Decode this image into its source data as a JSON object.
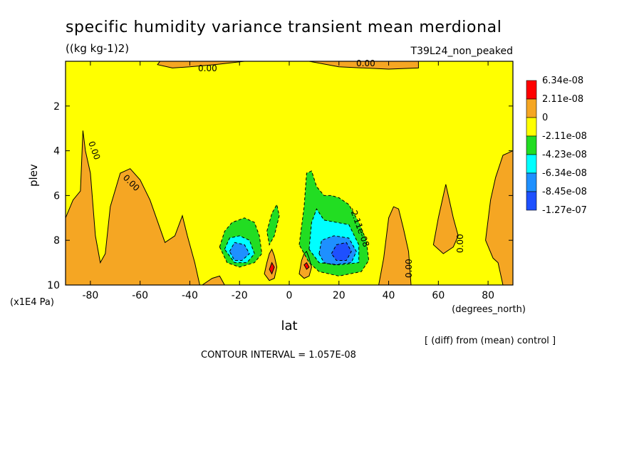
{
  "chart_data": {
    "type": "heatmap",
    "title": "specific humidity variance transient mean merdional",
    "units": "((kg kg-1)2)",
    "run_label": "T39L24_non_peaked",
    "xlabel": "lat",
    "xunits": "(degrees_north)",
    "ylabel": "plev",
    "yunits": "(x1E4 Pa)",
    "xlim": [
      -90,
      90
    ],
    "ylim": [
      10,
      0
    ],
    "xticks": [
      -80,
      -60,
      -40,
      -20,
      0,
      20,
      40,
      60,
      80
    ],
    "yticks": [
      2,
      4,
      6,
      8,
      10
    ],
    "footer_note": "[ (diff) from (mean) control ]",
    "contour_interval": "CONTOUR INTERVAL = 1.057E-08",
    "contour_labels": [
      "0.00",
      "0.00",
      "0.00",
      "0.00",
      "0.00",
      "0.00",
      "-2.11e-08"
    ],
    "legend": [
      {
        "label": "6.34e-08",
        "color": "#ff0000"
      },
      {
        "label": "2.11e-08",
        "color": "#f5a623"
      },
      {
        "label": "0",
        "color": "#ffff00"
      },
      {
        "label": "-2.11e-08",
        "color": "#22dd22"
      },
      {
        "label": "-4.23e-08",
        "color": "#00ffff"
      },
      {
        "label": "-6.34e-08",
        "color": "#1e90ff"
      },
      {
        "label": "-8.45e-08",
        "color": "#1e50ff"
      },
      {
        "label": "-1.27e-07",
        "color": ""
      }
    ],
    "legend_bounds": [
      "6.34e-08",
      "2.11e-08",
      "0",
      "-2.11e-08",
      "-4.23e-08",
      "-6.34e-08",
      "-8.45e-08",
      "-1.27e-07"
    ],
    "regions": [
      {
        "level": "positive",
        "color": "#f5a623",
        "points": [
          [
            -90,
            7
          ],
          [
            -87,
            6.2
          ],
          [
            -84,
            5.8
          ],
          [
            -83,
            3.1
          ],
          [
            -82,
            4.0
          ],
          [
            -80,
            5.0
          ],
          [
            -78,
            7.8
          ],
          [
            -76,
            9.0
          ],
          [
            -74,
            8.6
          ],
          [
            -72,
            6.5
          ],
          [
            -68,
            5.0
          ],
          [
            -64,
            4.8
          ],
          [
            -60,
            5.3
          ],
          [
            -56,
            6.2
          ],
          [
            -50,
            8.1
          ],
          [
            -46,
            7.8
          ],
          [
            -43,
            6.9
          ],
          [
            -41,
            7.8
          ],
          [
            -38,
            9.0
          ],
          [
            -36,
            10
          ],
          [
            -90,
            10
          ]
        ]
      },
      {
        "level": "positive",
        "color": "#f5a623",
        "points": [
          [
            -35,
            10
          ],
          [
            -31,
            9.7
          ],
          [
            -28,
            9.6
          ],
          [
            -26,
            10
          ]
        ]
      },
      {
        "level": "positive",
        "color": "#f5a623",
        "points": [
          [
            -10,
            9.5
          ],
          [
            -9,
            9.0
          ],
          [
            -8,
            8.6
          ],
          [
            -7,
            8.4
          ],
          [
            -6,
            8.7
          ],
          [
            -5,
            9.2
          ],
          [
            -6,
            9.7
          ],
          [
            -8,
            9.8
          ]
        ]
      },
      {
        "level": "positive",
        "color": "#f5a623",
        "points": [
          [
            4,
            9.5
          ],
          [
            5,
            8.9
          ],
          [
            6,
            8.6
          ],
          [
            7,
            8.5
          ],
          [
            8,
            8.8
          ],
          [
            9,
            9.2
          ],
          [
            8,
            9.6
          ],
          [
            6,
            9.7
          ]
        ]
      },
      {
        "level": "positive",
        "color": "#f5a623",
        "points": [
          [
            36,
            10
          ],
          [
            38,
            8.8
          ],
          [
            40,
            7.0
          ],
          [
            42,
            6.5
          ],
          [
            44,
            6.6
          ],
          [
            46,
            7.5
          ],
          [
            48,
            8.5
          ],
          [
            49,
            10
          ]
        ]
      },
      {
        "level": "positive",
        "color": "#f5a623",
        "points": [
          [
            58,
            8.2
          ],
          [
            60,
            7.0
          ],
          [
            62,
            6.0
          ],
          [
            63,
            5.5
          ],
          [
            64,
            6.0
          ],
          [
            66,
            7.0
          ],
          [
            68,
            7.8
          ],
          [
            66,
            8.3
          ],
          [
            62,
            8.6
          ]
        ]
      },
      {
        "level": "positive",
        "color": "#f5a623",
        "points": [
          [
            79,
            8.0
          ],
          [
            81,
            6.2
          ],
          [
            83,
            5.2
          ],
          [
            86,
            4.2
          ],
          [
            90,
            4.0
          ],
          [
            90,
            10
          ],
          [
            86,
            10
          ],
          [
            84,
            9.0
          ],
          [
            82,
            8.8
          ]
        ]
      },
      {
        "level": "positive",
        "color": "#f5a623",
        "points": [
          [
            -52,
            0
          ],
          [
            -53,
            0.15
          ],
          [
            -47,
            0.3
          ],
          [
            -40,
            0.25
          ],
          [
            -30,
            0.15
          ],
          [
            -18,
            0
          ],
          [
            8,
            0
          ],
          [
            20,
            0.25
          ],
          [
            40,
            0.35
          ],
          [
            52,
            0.3
          ],
          [
            52,
            0
          ]
        ]
      },
      {
        "level": "-2.11e-08",
        "color": "#22dd22",
        "points": [
          [
            -28,
            8.3
          ],
          [
            -26,
            7.6
          ],
          [
            -23,
            7.2
          ],
          [
            -18,
            7.0
          ],
          [
            -14,
            7.2
          ],
          [
            -12,
            7.8
          ],
          [
            -11,
            8.6
          ],
          [
            -14,
            9.0
          ],
          [
            -20,
            9.2
          ],
          [
            -25,
            9.0
          ]
        ]
      },
      {
        "level": "-2.11e-08",
        "color": "#22dd22",
        "points": [
          [
            -9,
            7.6
          ],
          [
            -7,
            6.8
          ],
          [
            -5,
            6.4
          ],
          [
            -4,
            6.9
          ],
          [
            -6,
            7.8
          ],
          [
            -8,
            8.2
          ]
        ]
      },
      {
        "level": "-2.11e-08",
        "color": "#22dd22",
        "points": [
          [
            4,
            8.2
          ],
          [
            6,
            6.5
          ],
          [
            7,
            5.0
          ],
          [
            9,
            4.9
          ],
          [
            11,
            5.6
          ],
          [
            14,
            6.0
          ],
          [
            17,
            6.0
          ],
          [
            20,
            6.1
          ],
          [
            24,
            6.4
          ],
          [
            28,
            7.2
          ],
          [
            31,
            8.0
          ],
          [
            32,
            8.9
          ],
          [
            29,
            9.4
          ],
          [
            20,
            9.6
          ],
          [
            12,
            9.4
          ],
          [
            8,
            9.0
          ]
        ]
      },
      {
        "level": "-4.23e-08",
        "color": "#00ffff",
        "points": [
          [
            -26,
            8.4
          ],
          [
            -24,
            7.9
          ],
          [
            -20,
            7.8
          ],
          [
            -16,
            8.0
          ],
          [
            -14,
            8.6
          ],
          [
            -17,
            9.0
          ],
          [
            -22,
            9.0
          ]
        ]
      },
      {
        "level": "-4.23e-08",
        "color": "#00ffff",
        "points": [
          [
            8,
            8.4
          ],
          [
            9,
            7.2
          ],
          [
            11,
            6.6
          ],
          [
            14,
            7.1
          ],
          [
            19,
            7.2
          ],
          [
            24,
            7.3
          ],
          [
            28,
            8.2
          ],
          [
            28,
            9.0
          ],
          [
            20,
            9.1
          ],
          [
            12,
            9.0
          ]
        ]
      },
      {
        "level": "-6.34e-08",
        "color": "#1e90ff",
        "points": [
          [
            -24,
            8.5
          ],
          [
            -22,
            8.1
          ],
          [
            -18,
            8.2
          ],
          [
            -16,
            8.6
          ],
          [
            -19,
            8.9
          ],
          [
            -22,
            8.9
          ]
        ]
      },
      {
        "level": "-6.34e-08",
        "color": "#1e90ff",
        "points": [
          [
            12,
            8.6
          ],
          [
            13,
            8.0
          ],
          [
            18,
            7.8
          ],
          [
            24,
            7.9
          ],
          [
            27,
            8.5
          ],
          [
            25,
            9.0
          ],
          [
            18,
            9.1
          ],
          [
            14,
            9.0
          ]
        ]
      },
      {
        "level": "-8.45e-08",
        "color": "#1e50ff",
        "points": [
          [
            17,
            8.6
          ],
          [
            19,
            8.2
          ],
          [
            23,
            8.1
          ],
          [
            25,
            8.5
          ],
          [
            23,
            8.9
          ],
          [
            19,
            8.9
          ]
        ]
      },
      {
        "level": "6.34e-08",
        "color": "#ff0000",
        "points": [
          [
            -8,
            9.3
          ],
          [
            -7,
            9.0
          ],
          [
            -6,
            9.2
          ],
          [
            -7,
            9.5
          ]
        ]
      },
      {
        "level": "6.34e-08",
        "color": "#ff0000",
        "points": [
          [
            6,
            9.1
          ],
          [
            7,
            9.0
          ],
          [
            8,
            9.2
          ],
          [
            7,
            9.3
          ]
        ]
      }
    ]
  }
}
